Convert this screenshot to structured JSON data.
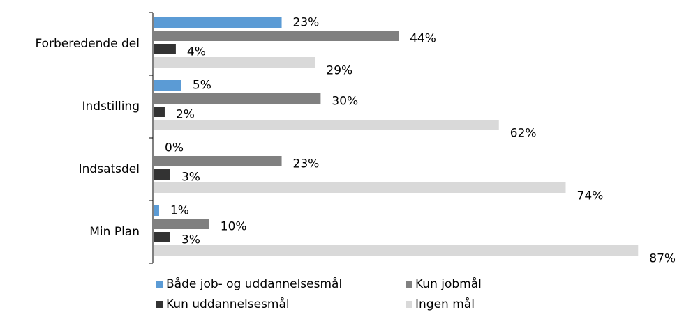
{
  "chart_data": {
    "type": "bar",
    "orientation": "horizontal",
    "categories": [
      "Forberedende del",
      "Indstilling",
      "Indsatsdel",
      "Min Plan"
    ],
    "series": [
      {
        "name": "Både job- og uddannelsesmål",
        "color": "#5b9bd5",
        "values": [
          23,
          5,
          0,
          1
        ],
        "value_labels": [
          "23%",
          "5%",
          "0%",
          "1%"
        ]
      },
      {
        "name": "Kun jobmål",
        "color": "#808080",
        "values": [
          44,
          30,
          23,
          10
        ],
        "value_labels": [
          "44%",
          "30%",
          "23%",
          "10%"
        ]
      },
      {
        "name": "Kun uddannelsesmål",
        "color": "#333333",
        "values": [
          4,
          2,
          3,
          3
        ],
        "value_labels": [
          "4%",
          "2%",
          "3%",
          "3%"
        ]
      },
      {
        "name": "Ingen mål",
        "color": "#d9d9d9",
        "values": [
          29,
          62,
          74,
          87
        ],
        "value_labels": [
          "29%",
          "62%",
          "74%",
          "87%"
        ]
      }
    ],
    "legend": "bottom"
  }
}
